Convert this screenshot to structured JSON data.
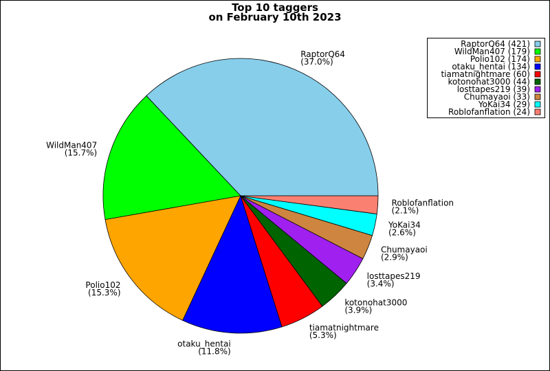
{
  "chart_data": {
    "type": "pie",
    "title": "Top 10 taggers",
    "subtitle": "on February 10th 2023",
    "categories": [
      "RaptorQ64",
      "WildMan407",
      "Polio102",
      "otaku_hentai",
      "tiamatnightmare",
      "kotonohat3000",
      "losttapes219",
      "Chumayaoi",
      "YoKai34",
      "Roblofanflation"
    ],
    "values": [
      421,
      179,
      174,
      134,
      60,
      44,
      39,
      33,
      29,
      24
    ],
    "value_labels": [
      "(37.0%)",
      "(15.7%)",
      "(15.3%)",
      "(11.8%)",
      "(5.3%)",
      "(3.9%)",
      "(3.4%)",
      "(2.9%)",
      "(2.6%)",
      "(2.1%)"
    ],
    "legend_labels": [
      "RaptorQ64 (421)",
      "WildMan407 (179)",
      "Polio102 (174)",
      "otaku_hentai (134)",
      "tiamatnightmare (60)",
      "kotonohat3000 (44)",
      "losttapes219 (39)",
      "Chumayaoi (33)",
      "YoKai34 (29)",
      "Roblofanflation (24)"
    ],
    "colors": [
      "#87ceeb",
      "#00ff00",
      "#ffa500",
      "#0000ff",
      "#ff0000",
      "#006400",
      "#a020f0",
      "#cd853f",
      "#00ffff",
      "#fa8072"
    ],
    "legend_position": "upper right"
  }
}
